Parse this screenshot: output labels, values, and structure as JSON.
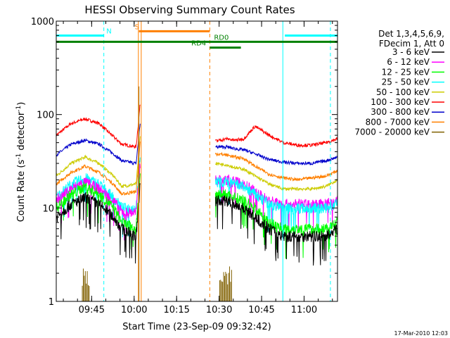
{
  "chart_data": {
    "type": "line",
    "title": "HESSI Observing Summary Count Rates",
    "xlabel": "Start Time (23-Sep-09 09:32:42)",
    "ylabel_main": "Count Rate (s",
    "ylabel_sup1": "-1",
    "ylabel_mid": " detector",
    "ylabel_sup2": "-1",
    "ylabel_end": ")",
    "yscale": "log",
    "ylim": [
      1,
      1000
    ],
    "y_ticks": [
      {
        "value": 1,
        "label": "1"
      },
      {
        "value": 10,
        "label": "10"
      },
      {
        "value": 100,
        "label": "100"
      },
      {
        "value": 1000,
        "label": "1000"
      }
    ],
    "xlim_minutes": [
      -0.2,
      99.1
    ],
    "x_ticks": [
      {
        "minute": 12.3,
        "label": "09:45"
      },
      {
        "minute": 27.3,
        "label": "10:00"
      },
      {
        "minute": 42.3,
        "label": "10:15"
      },
      {
        "minute": 57.3,
        "label": "10:30"
      },
      {
        "minute": 72.3,
        "label": "10:45"
      },
      {
        "minute": 87.3,
        "label": "11:00"
      }
    ],
    "legend": {
      "position": "right",
      "header": [
        "Det 1,3,4,5,6,9,",
        "FDecim 1, Att 0"
      ],
      "entries": [
        {
          "label": "3 - 6 keV",
          "color": "#000000"
        },
        {
          "label": "6 - 12 keV",
          "color": "#ff00ff"
        },
        {
          "label": "12 - 25 keV",
          "color": "#00ff00"
        },
        {
          "label": "25 - 50 keV",
          "color": "#00ffff"
        },
        {
          "label": "50 - 100 keV",
          "color": "#cccc00"
        },
        {
          "label": "100 - 300 keV",
          "color": "#ff0000"
        },
        {
          "label": "300 - 800 keV",
          "color": "#0000cc"
        },
        {
          "label": "800 - 7000 keV",
          "color": "#ff8000"
        },
        {
          "label": "7000 - 20000 keV",
          "color": "#806000"
        }
      ]
    },
    "series_levels": {
      "note_units": "count rate at selected minutes",
      "minutes": [
        -0.2,
        5,
        10,
        15,
        20,
        23,
        28,
        30
      ],
      "series": [
        {
          "name": "100 - 300 keV",
          "values": [
            60,
            80,
            90,
            80,
            58,
            48,
            45,
            200
          ]
        },
        {
          "name": "300 - 800 keV",
          "values": [
            37,
            48,
            53,
            48,
            38,
            32,
            30,
            120
          ]
        },
        {
          "name": "50 - 100 keV",
          "values": [
            22,
            30,
            35,
            30,
            22,
            17,
            18,
            90
          ]
        },
        {
          "name": "800 - 7000 keV",
          "values": [
            18,
            24,
            28,
            24,
            18,
            14,
            15,
            80
          ]
        },
        {
          "name": "25 - 50 keV",
          "values": [
            13,
            18,
            21,
            18,
            13,
            10,
            10,
            60
          ]
        },
        {
          "name": "6 - 12 keV",
          "values": [
            12,
            16,
            19,
            16,
            12,
            9,
            9,
            50
          ]
        },
        {
          "name": "12 - 25 keV",
          "values": [
            10,
            14,
            17,
            14,
            10,
            7,
            6,
            40
          ]
        },
        {
          "name": "3 - 6 keV",
          "values": [
            8,
            11,
            13,
            11,
            8,
            6,
            5,
            30
          ]
        }
      ],
      "minutes_after": [
        56,
        60,
        63,
        66,
        70,
        75,
        80,
        85,
        90,
        95,
        99
      ],
      "series_after": [
        {
          "name": "100 - 300 keV",
          "values": [
            52,
            55,
            53,
            55,
            75,
            60,
            50,
            47,
            47,
            50,
            55
          ]
        },
        {
          "name": "300 - 800 keV",
          "values": [
            45,
            45,
            43,
            42,
            38,
            33,
            31,
            30,
            30,
            32,
            35
          ]
        },
        {
          "name": "800 - 7000 keV",
          "values": [
            38,
            37,
            35,
            34,
            28,
            23,
            21,
            20,
            21,
            22,
            25
          ]
        },
        {
          "name": "50 - 100 keV",
          "values": [
            30,
            29,
            27,
            26,
            22,
            18,
            16,
            16,
            16,
            17,
            20
          ]
        },
        {
          "name": "6 - 12 keV",
          "values": [
            20,
            20,
            19,
            18,
            15,
            12,
            11,
            11,
            11,
            11,
            12
          ]
        },
        {
          "name": "25 - 50 keV",
          "values": [
            19,
            19,
            18,
            17,
            14,
            11,
            10,
            10,
            10,
            10,
            11
          ]
        },
        {
          "name": "12 - 25 keV",
          "values": [
            14,
            14,
            13,
            12,
            10,
            7,
            6,
            6,
            6,
            6,
            7
          ]
        },
        {
          "name": "3 - 6 keV",
          "values": [
            12,
            12,
            11,
            10,
            8,
            6,
            5,
            5,
            5,
            5,
            6
          ]
        }
      ]
    },
    "state_bars": [
      {
        "label": "N",
        "color": "#00ffff",
        "y": 700,
        "segments": [
          [
            -0.2,
            16.6
          ],
          [
            80.5,
            99.1
          ]
        ],
        "label_at": 17.5
      },
      {
        "label": "S",
        "color": "#ff8000",
        "y": 780,
        "segments": [
          [
            29.0,
            54.0
          ]
        ],
        "label_at": 27.5
      },
      {
        "label": "RD0",
        "color": "#008000",
        "y": 600,
        "segments": [
          [
            -0.2,
            99.1
          ]
        ],
        "label_at": 55.5
      },
      {
        "label": "RD4",
        "color": "#008000",
        "y": 520,
        "segments": [
          [
            54.0,
            65.0
          ]
        ],
        "label_at": 47.5
      }
    ],
    "vlines": [
      {
        "minute": 16.6,
        "color": "#00ffff",
        "dash": true
      },
      {
        "minute": 28.8,
        "color": "#ff8000",
        "dash": false
      },
      {
        "minute": 29.8,
        "color": "#ff8000",
        "dash": false
      },
      {
        "minute": 54.0,
        "color": "#ff8000",
        "dash": true
      },
      {
        "minute": 79.8,
        "color": "#00ffff",
        "dash": false
      },
      {
        "minute": 96.6,
        "color": "#00ffff",
        "dash": true
      }
    ],
    "footer": "17-Mar-2010 12:03"
  }
}
